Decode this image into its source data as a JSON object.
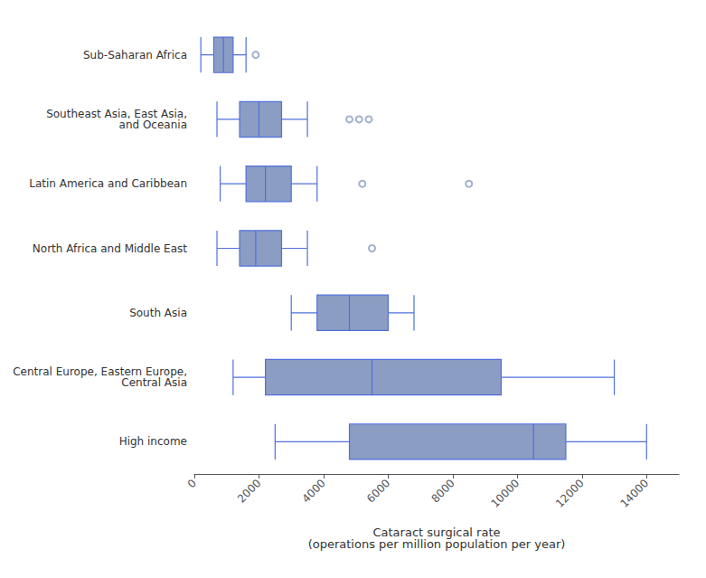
{
  "chart_data": {
    "type": "boxplot",
    "orientation": "horizontal",
    "categories": [
      "High income",
      "Central Europe, Eastern Europe,\nCentral Asia",
      "South Asia",
      "North Africa and Middle East",
      "Latin America and Caribbean",
      "Southeast Asia, East Asia,\nand Oceania",
      "Sub-Saharan Africa"
    ],
    "values": [
      [
        2500,
        4800,
        10500,
        11500,
        14000
      ],
      [
        1200,
        2200,
        5500,
        9500,
        13000
      ],
      [
        3000,
        3800,
        4800,
        6000,
        6800
      ],
      [
        700,
        1400,
        1900,
        2700,
        3500
      ],
      [
        800,
        1600,
        2200,
        3000,
        3800
      ],
      [
        700,
        1400,
        2000,
        2700,
        3500
      ],
      [
        200,
        600,
        900,
        1200,
        1600
      ]
    ],
    "outliers": [
      [],
      [],
      [],
      [
        5500
      ],
      [
        5200,
        8500
      ],
      [
        4800,
        5100,
        5400
      ],
      [
        1900
      ]
    ],
    "color": "#8B9DC3",
    "xlabel": "Cataract surgical rate\n(operations per million population per year)",
    "xlim": [
      0,
      15000
    ],
    "xticks": [
      0,
      2000,
      4000,
      6000,
      8000,
      10000,
      12000,
      14000
    ],
    "grid": false
  }
}
